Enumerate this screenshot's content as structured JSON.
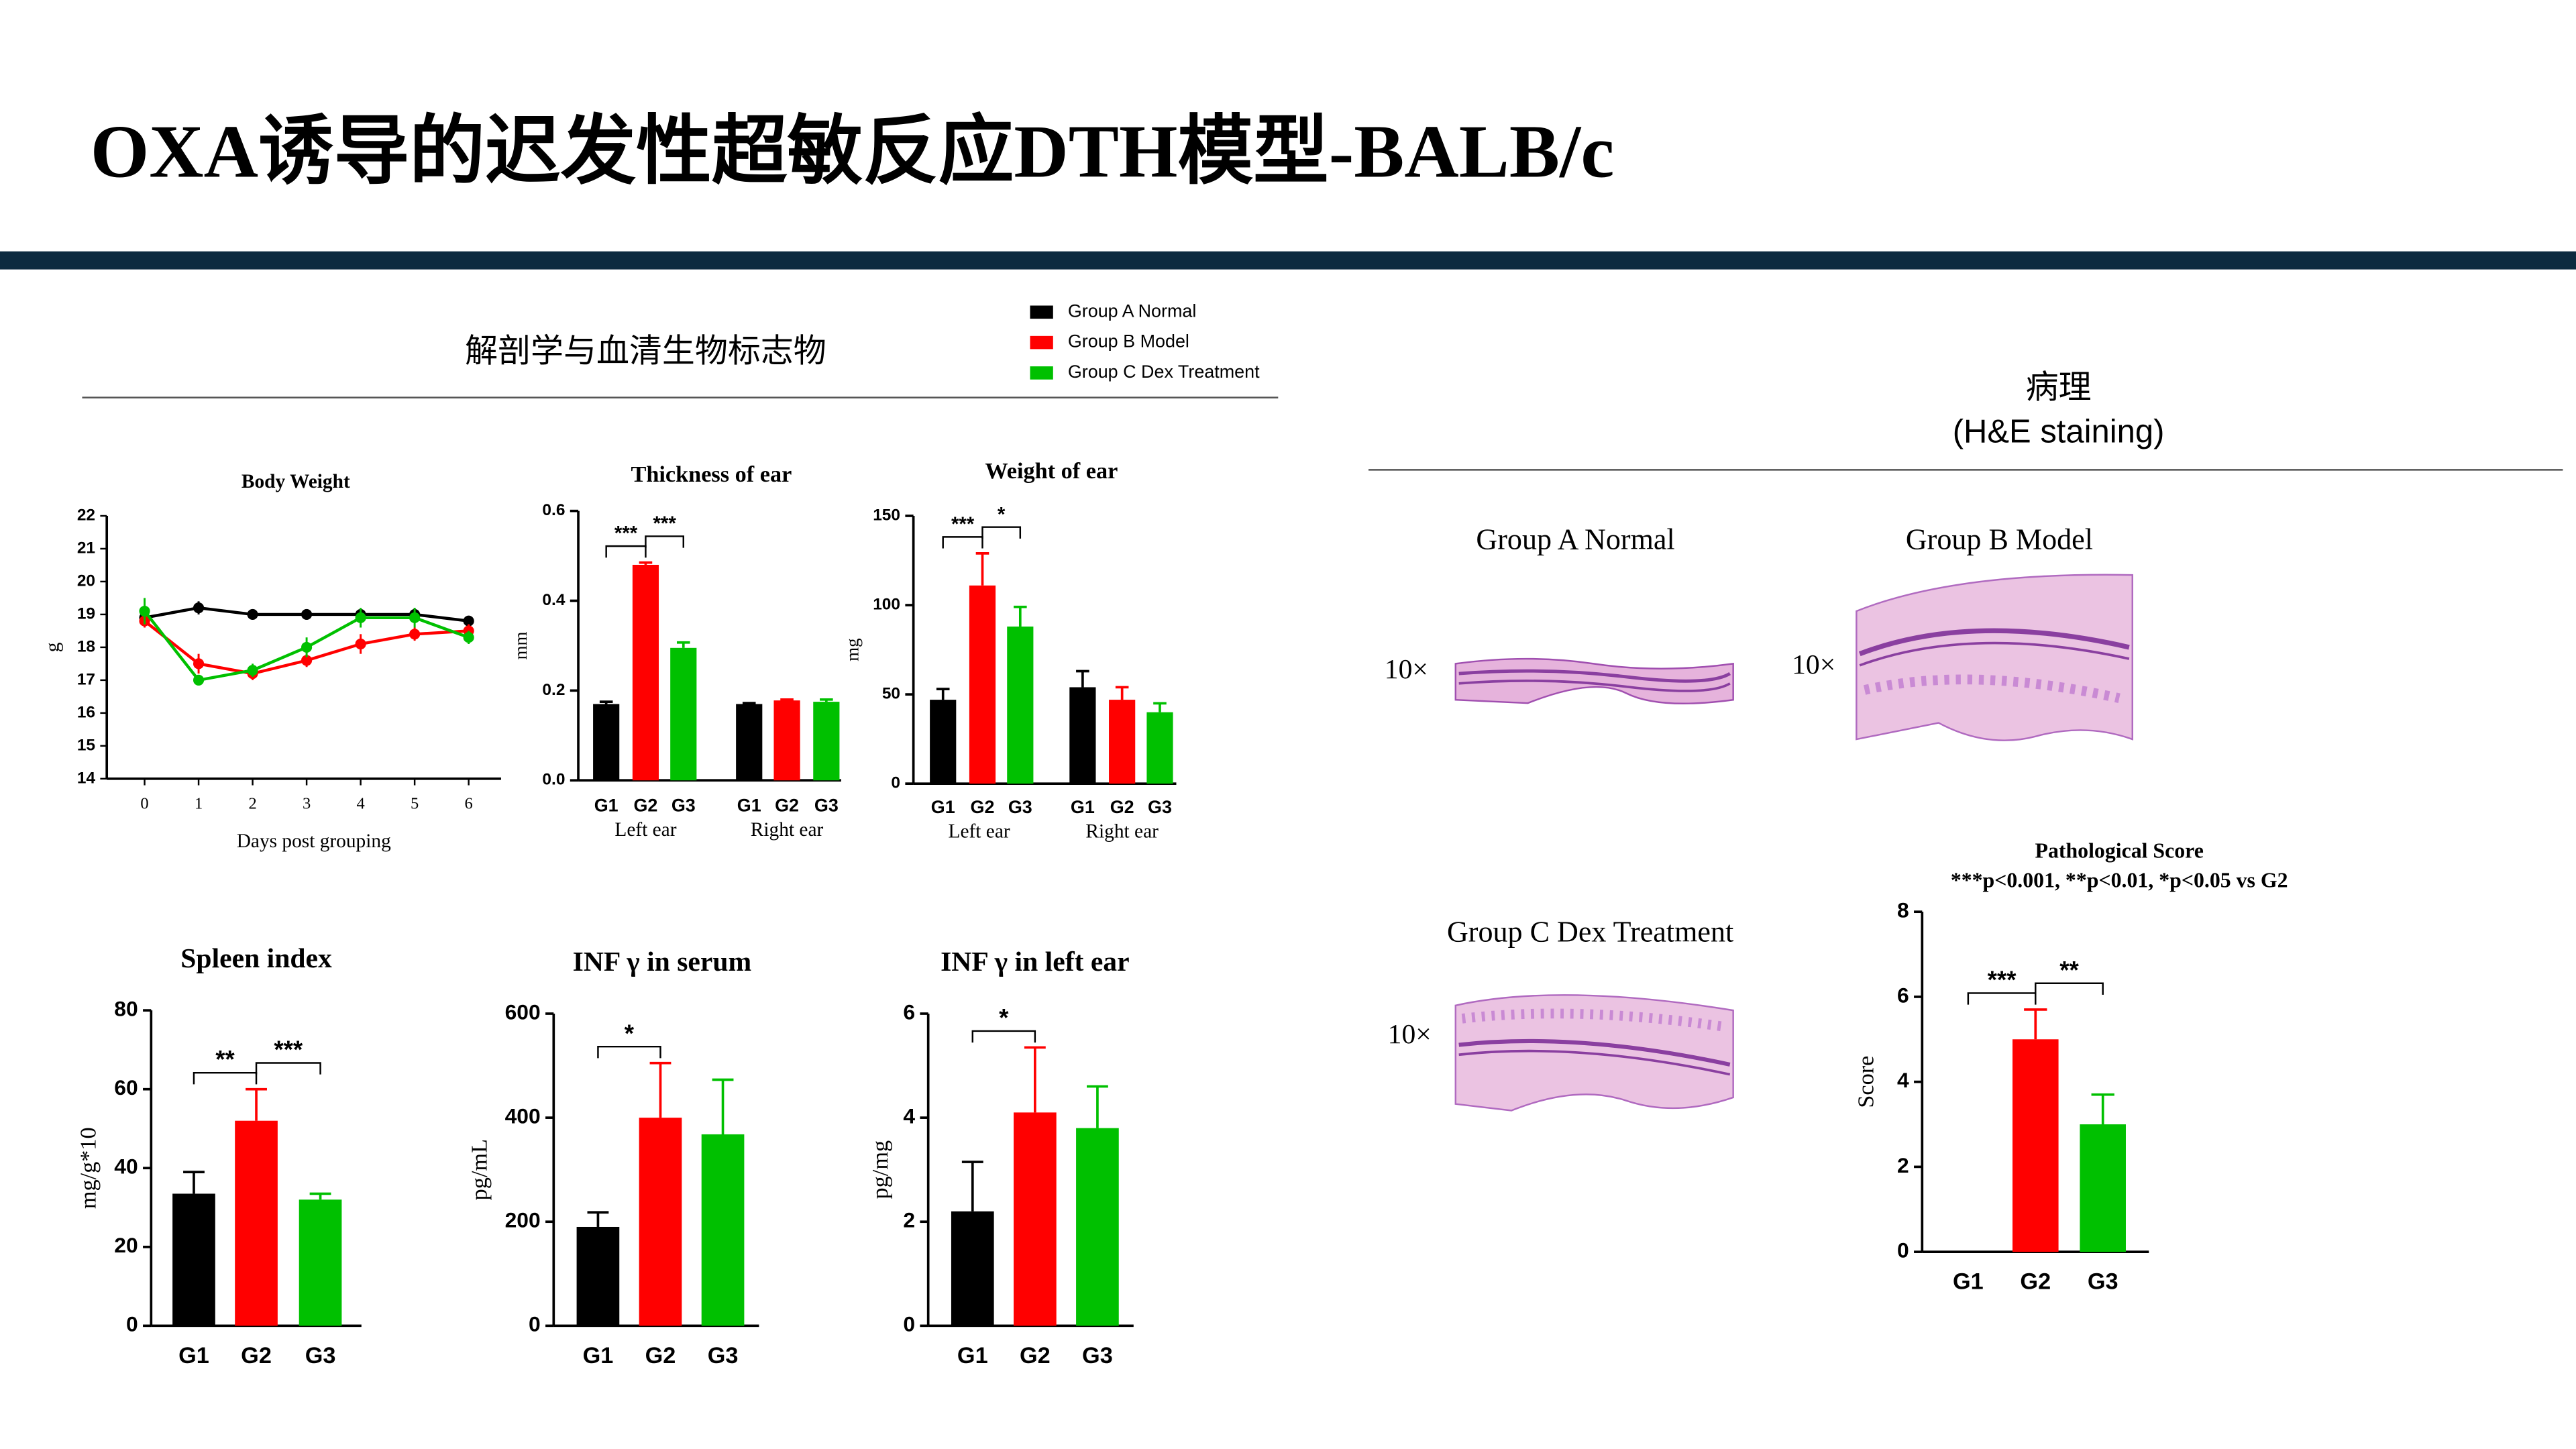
{
  "header": {
    "title": "OXA诱导的迟发性超敏反应DTH模型-BALB/c"
  },
  "biomarkers": {
    "title": "解剖学与血清生物标志物"
  },
  "pathology": {
    "title": "病理",
    "subtitle": "(H&E staining)",
    "panels": [
      {
        "label": "Group A Normal",
        "magnification": "10×"
      },
      {
        "label": "Group B Model",
        "magnification": "10×"
      },
      {
        "label": "Group C Dex Treatment",
        "magnification": "10×"
      }
    ]
  },
  "chart_data": [
    {
      "type": "line",
      "title": "Body Weight",
      "xlabel": "Days post grouping",
      "ylabel": "g",
      "x": [
        0,
        1,
        2,
        3,
        4,
        5,
        6
      ],
      "xlim": [
        -0.7,
        6.6
      ],
      "xticks": [
        0,
        1,
        2,
        3,
        4,
        5,
        6
      ],
      "ylim": [
        14,
        22
      ],
      "yticks": [
        14,
        15,
        16,
        17,
        18,
        19,
        20,
        21,
        22
      ],
      "series": [
        {
          "name": "Group A Normal",
          "color": "#000000",
          "values": [
            18.9,
            19.2,
            19.0,
            19.0,
            19.0,
            19.0,
            18.8
          ],
          "errors": [
            0.15,
            0.2,
            0.15,
            0.15,
            0.15,
            0.2,
            0.1
          ]
        },
        {
          "name": "Group B Model",
          "color": "#ff0000",
          "values": [
            18.8,
            17.5,
            17.2,
            17.6,
            18.1,
            18.4,
            18.5
          ],
          "errors": [
            0.2,
            0.3,
            0.2,
            0.2,
            0.3,
            0.2,
            0.2
          ]
        },
        {
          "name": "Group C Dex Treatment",
          "color": "#00c000",
          "values": [
            19.1,
            17.0,
            17.3,
            18.0,
            18.9,
            18.9,
            18.3
          ],
          "errors": [
            0.4,
            0.1,
            0.2,
            0.3,
            0.3,
            0.3,
            0.2
          ]
        }
      ]
    },
    {
      "type": "bar",
      "title": "Thickness of ear",
      "ylabel": "mm",
      "categories": [
        "G1",
        "G2",
        "G3",
        "G1",
        "G2",
        "G3"
      ],
      "groups": [
        "Left ear",
        "Right ear"
      ],
      "values": [
        0.17,
        0.48,
        0.295,
        0.17,
        0.178,
        0.175
      ],
      "errors": [
        0.005,
        0.005,
        0.012,
        0.002,
        0.002,
        0.005
      ],
      "colors": [
        "#000000",
        "#ff0000",
        "#00c000",
        "#000000",
        "#ff0000",
        "#00c000"
      ],
      "ylim": [
        0,
        0.6
      ],
      "yticks": [
        {
          "value": 0,
          "label": "0.0"
        },
        0.2,
        0.4,
        0.6
      ],
      "annotations": [
        "***",
        "***"
      ]
    },
    {
      "type": "bar",
      "title": "Weight of ear",
      "ylabel": "mg",
      "categories": [
        "G1",
        "G2",
        "G3",
        "G1",
        "G2",
        "G3"
      ],
      "groups": [
        "Left ear",
        "Right ear"
      ],
      "values": [
        47,
        111,
        88,
        54,
        47,
        40
      ],
      "errors": [
        6,
        18,
        11,
        9,
        7,
        5
      ],
      "colors": [
        "#000000",
        "#ff0000",
        "#00c000",
        "#000000",
        "#ff0000",
        "#00c000"
      ],
      "ylim": [
        0,
        150
      ],
      "yticks": [
        0,
        50,
        100,
        150
      ],
      "annotations": [
        "***",
        "*"
      ]
    },
    {
      "type": "bar",
      "title": "Spleen index",
      "ylabel": "mg/g*10",
      "categories": [
        "G1",
        "G2",
        "G3"
      ],
      "values": [
        33.5,
        52,
        32
      ],
      "errors": [
        5.5,
        8,
        1.5
      ],
      "colors": [
        "#000000",
        "#ff0000",
        "#00c000"
      ],
      "ylim": [
        0,
        80
      ],
      "yticks": [
        0,
        20,
        40,
        60,
        80
      ],
      "annotations": [
        "**",
        "***"
      ]
    },
    {
      "type": "bar",
      "title": "INF γ in serum",
      "ylabel": "pg/mL",
      "categories": [
        "G1",
        "G2",
        "G3"
      ],
      "values": [
        190,
        400,
        368
      ],
      "errors": [
        28,
        105,
        105
      ],
      "colors": [
        "#000000",
        "#ff0000",
        "#00c000"
      ],
      "ylim": [
        0,
        600
      ],
      "yticks": [
        0,
        200,
        400,
        600
      ],
      "annotations": [
        "*"
      ]
    },
    {
      "type": "bar",
      "title": "INF γ in left ear",
      "ylabel": "pg/mg",
      "categories": [
        "G1",
        "G2",
        "G3"
      ],
      "values": [
        2.2,
        4.1,
        3.8
      ],
      "errors": [
        0.95,
        1.25,
        0.8
      ],
      "colors": [
        "#000000",
        "#ff0000",
        "#00c000"
      ],
      "ylim": [
        0,
        6
      ],
      "yticks": [
        0,
        2,
        4,
        6
      ],
      "annotations": [
        "*"
      ]
    },
    {
      "type": "bar",
      "title": "Pathological Score",
      "subtitle": "***p<0.001, **p<0.01, *p<0.05 vs G2",
      "ylabel": "Score",
      "categories": [
        "G1",
        "G2",
        "G3"
      ],
      "values": [
        0,
        5,
        3
      ],
      "errors": [
        0,
        0.7,
        0.7
      ],
      "colors": [
        "#000000",
        "#ff0000",
        "#00c000"
      ],
      "ylim": [
        0,
        8
      ],
      "yticks": [
        0,
        2,
        4,
        6,
        8
      ],
      "annotations": [
        "***",
        "**"
      ]
    }
  ]
}
